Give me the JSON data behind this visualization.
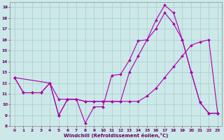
{
  "bg_color": "#cce8e8",
  "grid_color": "#aacccc",
  "line_color": "#aa00aa",
  "xlabel": "Windchill (Refroidissement éolien,°C)",
  "line1": {
    "x": [
      0,
      1,
      2,
      3,
      4,
      5,
      6,
      7,
      8,
      9,
      10,
      11,
      12,
      13,
      14,
      15,
      16,
      17,
      18,
      19,
      20,
      21,
      22,
      23
    ],
    "y": [
      12.5,
      11.1,
      11.1,
      11.1,
      12.0,
      9.0,
      10.5,
      10.5,
      8.3,
      9.8,
      9.8,
      12.7,
      12.8,
      14.1,
      15.9,
      16.0,
      17.8,
      19.2,
      18.5,
      16.0,
      13.0,
      10.2,
      9.2,
      9.2
    ]
  },
  "line2": {
    "x": [
      0,
      1,
      2,
      3,
      4,
      5,
      6,
      7,
      8,
      9,
      10,
      11,
      12,
      13,
      14,
      15,
      16,
      17,
      18,
      19,
      20,
      21,
      22,
      23
    ],
    "y": [
      12.5,
      11.1,
      11.1,
      11.1,
      12.0,
      9.0,
      10.5,
      10.5,
      10.3,
      10.3,
      10.3,
      10.3,
      10.3,
      13.0,
      14.5,
      16.0,
      17.0,
      18.5,
      17.5,
      16.0,
      13.0,
      10.2,
      9.2,
      9.2
    ]
  },
  "line3": {
    "x": [
      0,
      4,
      5,
      6,
      7,
      8,
      9,
      10,
      11,
      12,
      13,
      14,
      15,
      16,
      17,
      18,
      19,
      20,
      21,
      22,
      23
    ],
    "y": [
      12.5,
      12.0,
      10.5,
      10.5,
      10.5,
      10.3,
      10.3,
      10.3,
      10.3,
      10.3,
      10.3,
      10.3,
      10.8,
      11.5,
      12.5,
      13.5,
      14.5,
      15.5,
      15.8,
      16.0,
      9.2
    ]
  },
  "xlim": [
    -0.5,
    23.5
  ],
  "ylim": [
    8,
    19.5
  ],
  "yticks": [
    8,
    9,
    10,
    11,
    12,
    13,
    14,
    15,
    16,
    17,
    18,
    19
  ],
  "xticks": [
    0,
    1,
    2,
    3,
    4,
    5,
    6,
    7,
    8,
    9,
    10,
    11,
    12,
    13,
    14,
    15,
    16,
    17,
    18,
    19,
    20,
    21,
    22,
    23
  ]
}
